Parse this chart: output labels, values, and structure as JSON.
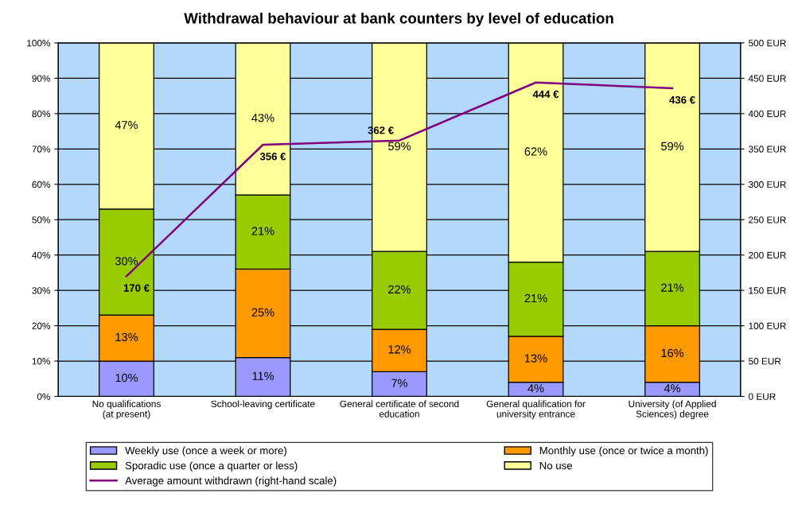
{
  "chart_data": {
    "type": "bar",
    "title": "Withdrawal behaviour at bank counters by level of education",
    "categories": [
      "No qualifications\n(at present)",
      "School-leaving certificate",
      "General certificate of second\neducation",
      "General qualification for\nuniversity entrance",
      "University (of Applied\nSciences) degree"
    ],
    "stacked": true,
    "legend": "bottom",
    "grid": "y",
    "ylim": [
      0,
      100
    ],
    "yticks": [
      {
        "value": 0,
        "label": "0%"
      },
      {
        "value": 10,
        "label": "10%"
      },
      {
        "value": 20,
        "label": "20%"
      },
      {
        "value": 30,
        "label": "30%"
      },
      {
        "value": 40,
        "label": "40%"
      },
      {
        "value": 50,
        "label": "50%"
      },
      {
        "value": 60,
        "label": "60%"
      },
      {
        "value": 70,
        "label": "70%"
      },
      {
        "value": 80,
        "label": "80%"
      },
      {
        "value": 90,
        "label": "90%"
      },
      {
        "value": 100,
        "label": "100%"
      }
    ],
    "y2lim": [
      0,
      500
    ],
    "y2ticks": [
      {
        "value": 0,
        "label": "0 EUR"
      },
      {
        "value": 50,
        "label": "50 EUR"
      },
      {
        "value": 100,
        "label": "100 EUR"
      },
      {
        "value": 150,
        "label": "150 EUR"
      },
      {
        "value": 200,
        "label": "200 EUR"
      },
      {
        "value": 250,
        "label": "250 EUR"
      },
      {
        "value": 300,
        "label": "300 EUR"
      },
      {
        "value": 350,
        "label": "350 EUR"
      },
      {
        "value": 400,
        "label": "400 EUR"
      },
      {
        "value": 450,
        "label": "450 EUR"
      },
      {
        "value": 500,
        "label": "500 EUR"
      }
    ],
    "series": [
      {
        "name": "Weekly use (once a week or more)",
        "color": "#9999ff",
        "values": [
          10,
          11,
          7,
          4,
          4
        ],
        "value_labels": [
          "10%",
          "11%",
          "7%",
          "4%",
          "4%"
        ]
      },
      {
        "name": "Monthly use (once or twice a month)",
        "color": "#ff9900",
        "values": [
          13,
          25,
          12,
          13,
          16
        ],
        "value_labels": [
          "13%",
          "25%",
          "12%",
          "13%",
          "16%"
        ]
      },
      {
        "name": "Sporadic use (once a quarter or less)",
        "color": "#99cc00",
        "values": [
          30,
          21,
          22,
          21,
          21
        ],
        "value_labels": [
          "30%",
          "21%",
          "22%",
          "21%",
          "21%"
        ]
      },
      {
        "name": "No use",
        "color": "#ffff99",
        "values": [
          47,
          43,
          59,
          62,
          59
        ],
        "value_labels": [
          "47%",
          "43%",
          "59%",
          "62%",
          "59%"
        ]
      },
      {
        "name": "Average amount withdrawn (right-hand scale)",
        "type": "line",
        "axis": "y2",
        "color": "#800080",
        "values": [
          170,
          356,
          362,
          444,
          436
        ],
        "value_labels": [
          "170 €",
          "356 €",
          "362 €",
          "444 €",
          "436 €"
        ]
      }
    ]
  }
}
